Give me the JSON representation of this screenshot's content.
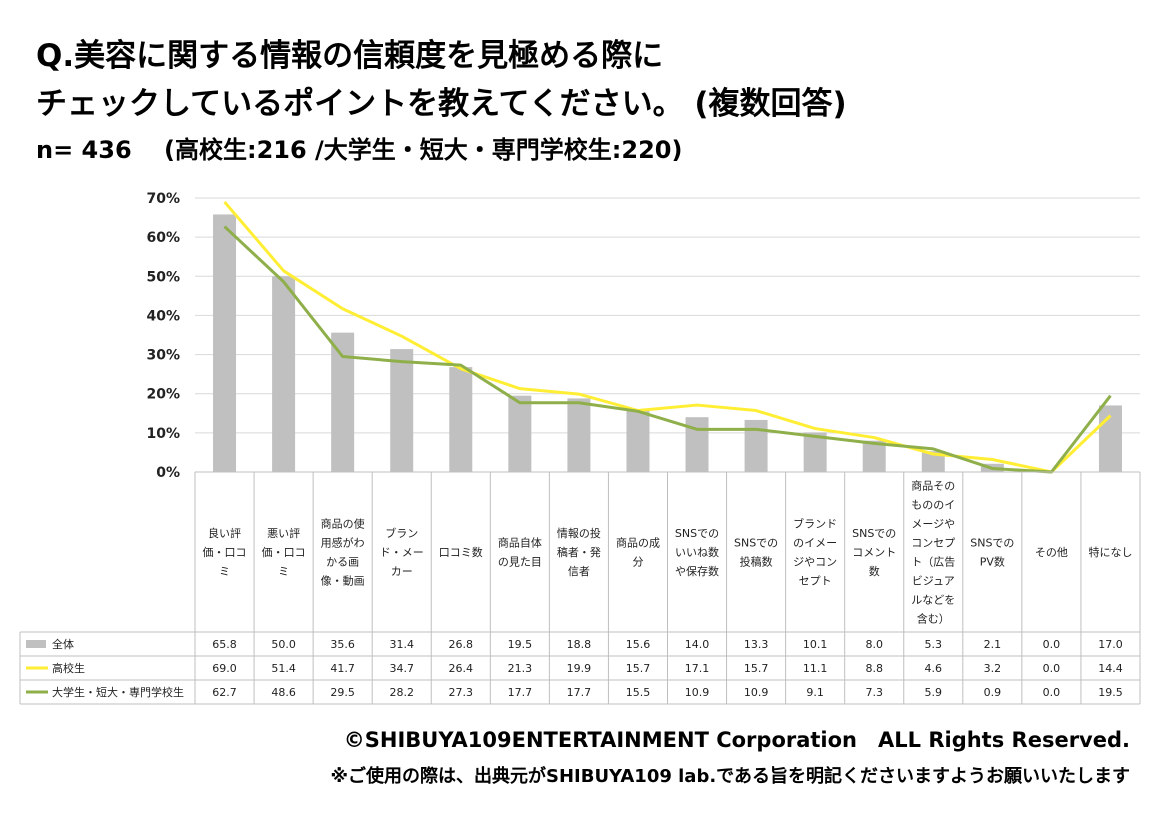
{
  "title_line1": "Q.美容に関する情報の信頼度を見極める際に",
  "title_line2": "チェックしているポイントを教えてください。 (複数回答)",
  "subtitle": "n= 436　 (高校生:216 /大学生・短大・専門学校生:220)",
  "footer": {
    "copyright": "©SHIBUYA109ENTERTAINMENT Corporation　ALL Rights Reserved.",
    "note": "※ご使用の際は、出典元がSHIBUYA109 lab.である旨を明記くださいますようお願いいたします"
  },
  "colors": {
    "total": "#c0c0c0",
    "highschool": "#ffee33",
    "university": "#8faf4a",
    "grid": "#d9d9d9",
    "table_border": "#bfbfbf"
  },
  "chart_data": {
    "type": "bar",
    "categories": [
      "良い評価・口コミ",
      "悪い評価・口コミ",
      "商品の使用感がわかる画像・動画",
      "ブランド・メーカー",
      "口コミ数",
      "商品自体の見た目",
      "情報の投稿者・発信者",
      "商品の成分",
      "SNSでのいいね数や保存数",
      "SNSでの投稿数",
      "ブランドのイメージやコンセプト",
      "SNSでのコメント数",
      "商品そのもののイメージやコンセプト（広告ビジュアルなどを含む）",
      "SNSでのPV数",
      "その他",
      "特になし"
    ],
    "category_lines": [
      [
        "良い評",
        "価・口コ",
        "ミ"
      ],
      [
        "悪い評",
        "価・口コ",
        "ミ"
      ],
      [
        "商品の使",
        "用感がわ",
        "かる画",
        "像・動画"
      ],
      [
        "ブラン",
        "ド・メー",
        "カー"
      ],
      [
        "口コミ数"
      ],
      [
        "商品自体",
        "の見た目"
      ],
      [
        "情報の投",
        "稿者・発",
        "信者"
      ],
      [
        "商品の成",
        "分"
      ],
      [
        "SNSでの",
        "いいね数",
        "や保存数"
      ],
      [
        "SNSでの",
        "投稿数"
      ],
      [
        "ブランド",
        "のイメー",
        "ジやコン",
        "セプト"
      ],
      [
        "SNSでの",
        "コメント",
        "数"
      ],
      [
        "商品その",
        "もののイ",
        "メージや",
        "コンセプ",
        "ト（広告",
        "ビジュア",
        "ルなどを",
        "含む）"
      ],
      [
        "SNSでの",
        "PV数"
      ],
      [
        "その他"
      ],
      [
        "特になし"
      ]
    ],
    "series": [
      {
        "name": "全体",
        "kind": "bar",
        "values": [
          65.8,
          50.0,
          35.6,
          31.4,
          26.8,
          19.5,
          18.8,
          15.6,
          14.0,
          13.3,
          10.1,
          8.0,
          5.3,
          2.1,
          0.0,
          17.0
        ],
        "labels": [
          "65.8",
          "50.0",
          "35.6",
          "31.4",
          "26.8",
          "19.5",
          "18.8",
          "15.6",
          "14.0",
          "13.3",
          "10.1",
          "8.0",
          "5.3",
          "2.1",
          "0.0",
          "17.0"
        ]
      },
      {
        "name": "高校生",
        "kind": "line",
        "values": [
          69.0,
          51.4,
          41.7,
          34.7,
          26.4,
          21.3,
          19.9,
          15.7,
          17.1,
          15.7,
          11.1,
          8.8,
          4.6,
          3.2,
          0.0,
          14.4
        ],
        "labels": [
          "69.0",
          "51.4",
          "41.7",
          "34.7",
          "26.4",
          "21.3",
          "19.9",
          "15.7",
          "17.1",
          "15.7",
          "11.1",
          "8.8",
          "4.6",
          "3.2",
          "0.0",
          "14.4"
        ]
      },
      {
        "name": "大学生・短大・専門学校生",
        "kind": "line",
        "values": [
          62.7,
          48.6,
          29.5,
          28.2,
          27.3,
          17.7,
          17.7,
          15.5,
          10.9,
          10.9,
          9.1,
          7.3,
          5.9,
          0.9,
          0.0,
          19.5
        ],
        "labels": [
          "62.7",
          "48.6",
          "29.5",
          "28.2",
          "27.3",
          "17.7",
          "17.7",
          "15.5",
          "10.9",
          "10.9",
          "9.1",
          "7.3",
          "5.9",
          "0.9",
          "0.0",
          "19.5"
        ]
      }
    ],
    "y_ticks": [
      "0%",
      "10%",
      "20%",
      "30%",
      "40%",
      "50%",
      "60%",
      "70%"
    ],
    "ylim": [
      0,
      70
    ],
    "grid": true,
    "legend": "data-table"
  }
}
